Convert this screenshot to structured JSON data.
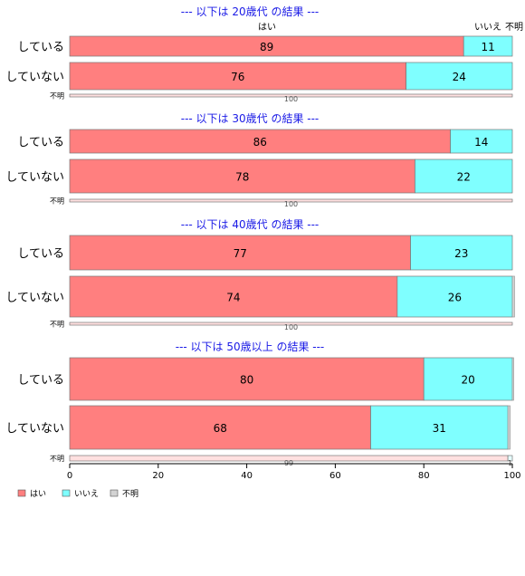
{
  "chart_data": {
    "type": "bar",
    "orientation": "horizontal",
    "stacked": true,
    "percent_scale": true,
    "xlim": [
      0,
      100
    ],
    "xticks": [
      0,
      20,
      40,
      60,
      80,
      100
    ],
    "column_headers": [
      "はい",
      "いいえ",
      "不明"
    ],
    "legend": {
      "position": "bottom-left",
      "entries": [
        {
          "label": "はい",
          "color": "#ff7f7f"
        },
        {
          "label": "いいえ",
          "color": "#7fffff"
        },
        {
          "label": "不明",
          "color": "#d3d3d3"
        }
      ]
    },
    "panels": [
      {
        "title": "--- 以下は 20歳代 の結果 ---",
        "rows": [
          {
            "label": "している",
            "values": [
              89,
              11,
              0
            ],
            "labels": [
              "89",
              "11",
              ""
            ]
          },
          {
            "label": "していない",
            "values": [
              76,
              24,
              0
            ],
            "labels": [
              "76",
              "24",
              ""
            ]
          },
          {
            "label": "不明",
            "values": [
              100,
              0,
              0
            ],
            "labels": [
              "100",
              "",
              ""
            ],
            "small": true
          }
        ]
      },
      {
        "title": "--- 以下は 30歳代 の結果 ---",
        "rows": [
          {
            "label": "している",
            "values": [
              86,
              14,
              0
            ],
            "labels": [
              "86",
              "14",
              ""
            ]
          },
          {
            "label": "していない",
            "values": [
              78,
              22,
              0
            ],
            "labels": [
              "78",
              "22",
              ""
            ]
          },
          {
            "label": "不明",
            "values": [
              100,
              0,
              0
            ],
            "labels": [
              "100",
              "",
              ""
            ],
            "small": true
          }
        ]
      },
      {
        "title": "--- 以下は 40歳代 の結果 ---",
        "rows": [
          {
            "label": "している",
            "values": [
              77,
              23,
              0
            ],
            "labels": [
              "77",
              "23",
              ""
            ]
          },
          {
            "label": "していない",
            "values": [
              74,
              26,
              0.5
            ],
            "labels": [
              "74",
              "26",
              ""
            ]
          },
          {
            "label": "不明",
            "values": [
              100,
              0,
              0
            ],
            "labels": [
              "100",
              "",
              ""
            ],
            "small": true
          }
        ]
      },
      {
        "title": "--- 以下は 50歳以上 の結果 ---",
        "rows": [
          {
            "label": "している",
            "values": [
              80,
              20,
              0.3
            ],
            "labels": [
              "80",
              "20",
              ""
            ]
          },
          {
            "label": "していない",
            "values": [
              68,
              31,
              0.5
            ],
            "labels": [
              "68",
              "31",
              ""
            ]
          },
          {
            "label": "不明",
            "values": [
              99,
              1,
              0
            ],
            "labels": [
              "99",
              "1",
              ""
            ],
            "small": true
          }
        ]
      }
    ]
  }
}
